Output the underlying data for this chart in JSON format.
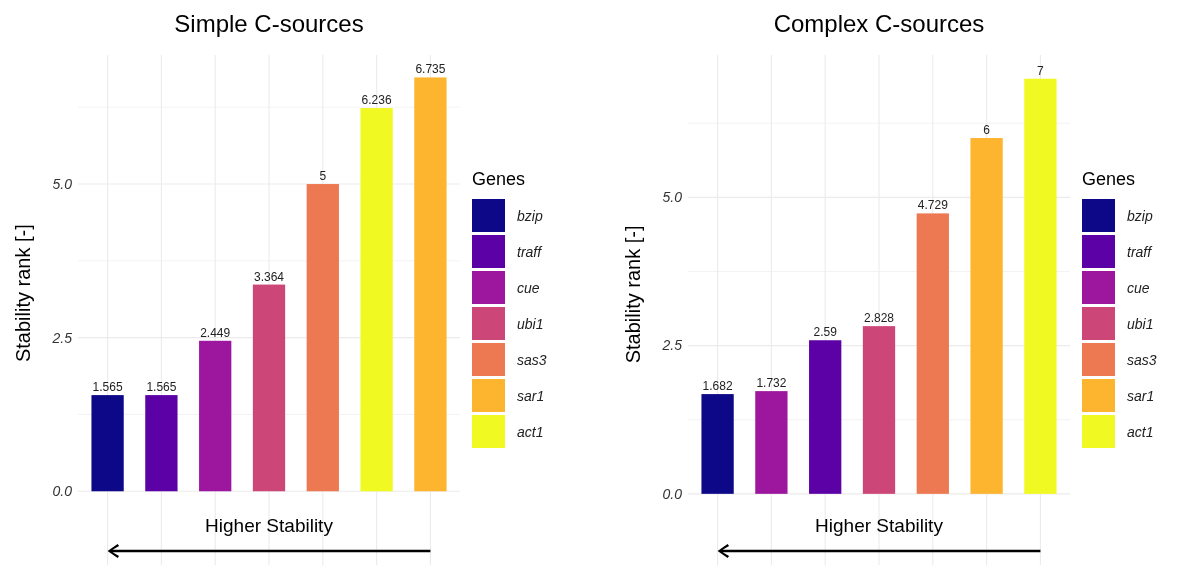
{
  "chart_data": [
    {
      "type": "bar",
      "title": "Simple C-sources",
      "xlabel": "Higher Stability",
      "ylabel": "Stability rank [-]",
      "legend_title": "Genes",
      "categories": [
        null,
        null,
        null,
        null,
        null,
        null,
        null
      ],
      "series": [
        {
          "name": "bzip",
          "color": "#0d0887",
          "values": [
            1.565,
            null,
            null,
            null,
            null,
            null,
            null
          ]
        },
        {
          "name": "traff",
          "color": "#5c01a6",
          "values": [
            null,
            1.565,
            null,
            null,
            null,
            null,
            null
          ]
        },
        {
          "name": "cue",
          "color": "#9c179e",
          "values": [
            null,
            null,
            2.449,
            null,
            null,
            null,
            null
          ]
        },
        {
          "name": "ubi1",
          "color": "#cc4778",
          "values": [
            null,
            null,
            null,
            3.364,
            null,
            null,
            null
          ]
        },
        {
          "name": "sas3",
          "color": "#ed7953",
          "values": [
            null,
            null,
            null,
            null,
            5,
            null,
            null
          ]
        },
        {
          "name": "sar1",
          "color": "#fdb42f",
          "values": [
            null,
            null,
            null,
            null,
            null,
            null,
            6.735
          ]
        },
        {
          "name": "act1",
          "color": "#f0f921",
          "values": [
            null,
            null,
            null,
            null,
            null,
            6.236,
            null
          ]
        }
      ],
      "ylim": [
        -1.2,
        7.1
      ],
      "yticks": [
        {
          "value": 0,
          "label": "0.0"
        },
        {
          "value": 1.25,
          "label": null
        },
        {
          "value": 2.5,
          "label": "2.5"
        },
        {
          "value": 3.75,
          "label": null
        },
        {
          "value": 5,
          "label": "5.0"
        },
        {
          "value": 6.25,
          "label": null
        }
      ],
      "grid": true,
      "legend": "right",
      "data_labels": true
    },
    {
      "type": "bar",
      "title": "Complex C-sources",
      "xlabel": "Higher Stability",
      "ylabel": "Stability rank [-]",
      "legend_title": "Genes",
      "categories": [
        null,
        null,
        null,
        null,
        null,
        null,
        null
      ],
      "series": [
        {
          "name": "bzip",
          "color": "#0d0887",
          "values": [
            1.682,
            null,
            null,
            null,
            null,
            null,
            null
          ]
        },
        {
          "name": "traff",
          "color": "#5c01a6",
          "values": [
            null,
            null,
            2.59,
            null,
            null,
            null,
            null
          ]
        },
        {
          "name": "cue",
          "color": "#9c179e",
          "values": [
            null,
            1.732,
            null,
            null,
            null,
            null,
            null
          ]
        },
        {
          "name": "ubi1",
          "color": "#cc4778",
          "values": [
            null,
            null,
            null,
            2.828,
            null,
            null,
            null
          ]
        },
        {
          "name": "sas3",
          "color": "#ed7953",
          "values": [
            null,
            null,
            null,
            null,
            4.729,
            null,
            null
          ]
        },
        {
          "name": "sar1",
          "color": "#fdb42f",
          "values": [
            null,
            null,
            null,
            null,
            null,
            6,
            null
          ]
        },
        {
          "name": "act1",
          "color": "#f0f921",
          "values": [
            null,
            null,
            null,
            null,
            null,
            null,
            7
          ]
        }
      ],
      "ylim": [
        -1.2,
        7.4
      ],
      "yticks": [
        {
          "value": 0,
          "label": "0.0"
        },
        {
          "value": 1.25,
          "label": null
        },
        {
          "value": 2.5,
          "label": "2.5"
        },
        {
          "value": 3.75,
          "label": null
        },
        {
          "value": 5,
          "label": "5.0"
        },
        {
          "value": 6.25,
          "label": null
        }
      ],
      "grid": true,
      "legend": "right",
      "data_labels": true
    }
  ]
}
